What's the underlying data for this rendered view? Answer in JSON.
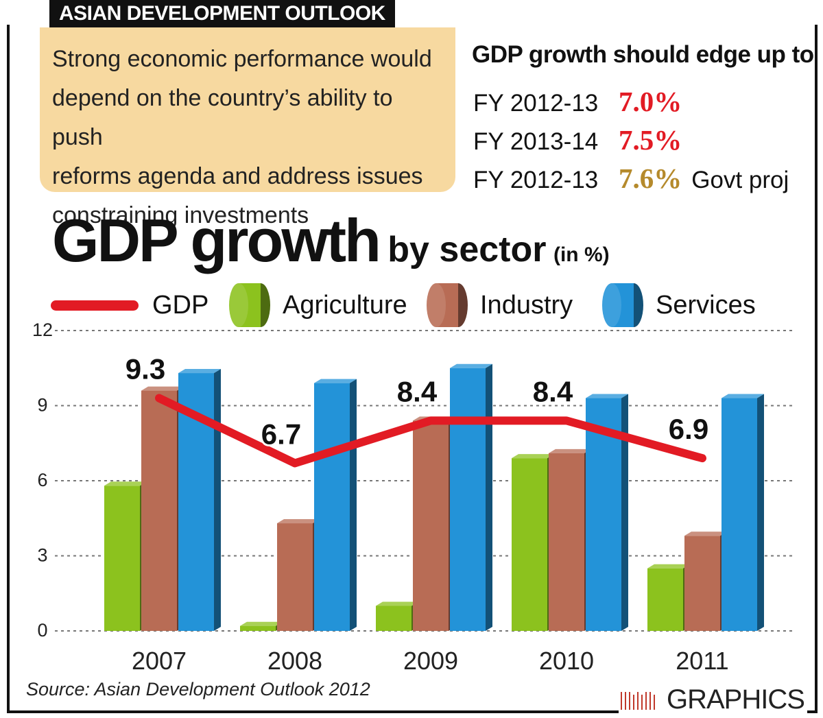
{
  "header": {
    "label": "ASIAN DEVELOPMENT OUTLOOK"
  },
  "summary": {
    "lines": [
      "Strong economic performance would",
      "depend on the country’s ability to push",
      "reforms agenda and address issues",
      "constraining investments"
    ]
  },
  "projection": {
    "title": "GDP growth should edge up to",
    "rows": [
      {
        "label": "FY 2012-13",
        "value": "7.0%",
        "note": "",
        "color": "#e21b24"
      },
      {
        "label": "FY 2013-14",
        "value": "7.5%",
        "note": "",
        "color": "#e21b24"
      },
      {
        "label": "FY 2012-13",
        "value": "7.6%",
        "note": "Govt proj",
        "color": "#b58a2c"
      }
    ]
  },
  "colors": {
    "gdp_line": "#e21b24",
    "agriculture": "#8cc21e",
    "industry": "#b86c55",
    "services": "#2393d8",
    "summary_box": "#f7d9a0"
  },
  "chart_data": {
    "type": "bar",
    "title_main": "GDP growth",
    "title_sub": "by sector",
    "title_unit": "(in %)",
    "categories": [
      "2007",
      "2008",
      "2009",
      "2010",
      "2011"
    ],
    "series": [
      {
        "name": "Agriculture",
        "values": [
          5.8,
          0.2,
          1.0,
          6.9,
          2.5
        ]
      },
      {
        "name": "Industry",
        "values": [
          9.6,
          4.3,
          8.4,
          7.1,
          3.8
        ]
      },
      {
        "name": "Services",
        "values": [
          10.3,
          9.9,
          10.5,
          9.3,
          9.3
        ]
      }
    ],
    "line_series": {
      "name": "GDP",
      "type": "line",
      "values": [
        9.3,
        6.7,
        8.4,
        8.4,
        6.9
      ],
      "labels": [
        "9.3",
        "6.7",
        "8.4",
        "8.4",
        "6.9"
      ]
    },
    "y_ticks": [
      "0",
      "3",
      "6",
      "9",
      "12"
    ],
    "ylim": [
      0,
      12
    ],
    "grid": true,
    "legend_position": "top"
  },
  "footer": {
    "source": "Source: Asian Development Outlook 2012",
    "credit": "GRAPHICS"
  }
}
